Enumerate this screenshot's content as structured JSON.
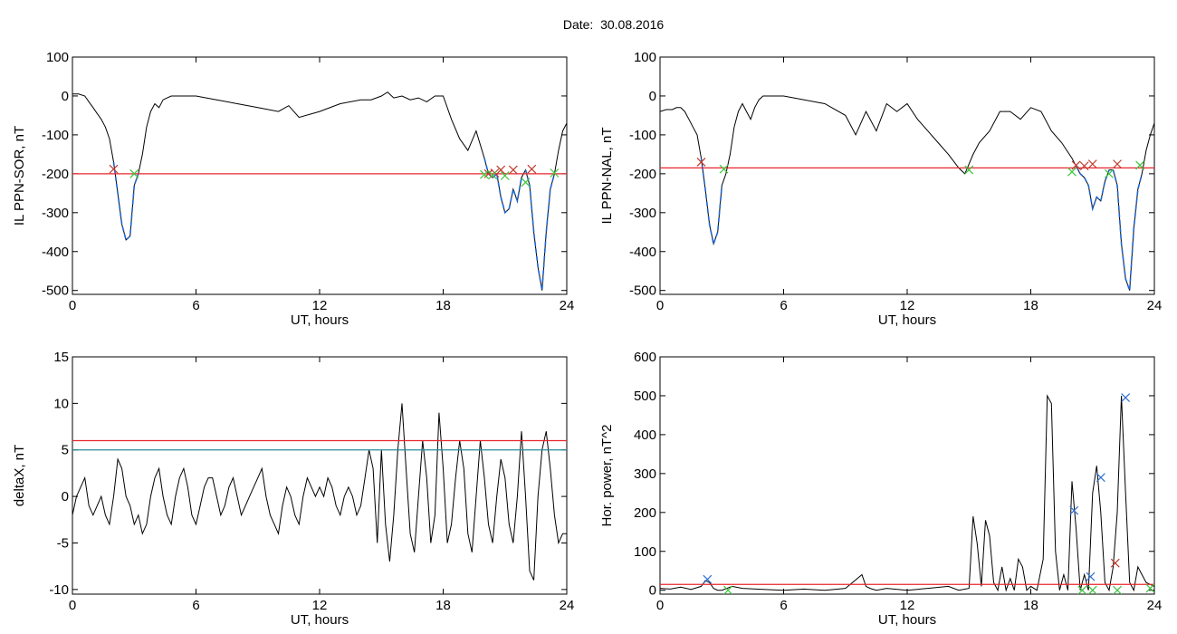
{
  "header": {
    "date_label": "Date:",
    "date_value": "30.08.2016"
  },
  "colors": {
    "threshold": "#e8262d",
    "threshold2": "#2a8a9a",
    "highlight": "#1f66d1",
    "marker_red": "#c0392b",
    "marker_green": "#3ec43e",
    "marker_blue": "#2f6fd0"
  },
  "chart_data": [
    {
      "id": "ppn-sor",
      "type": "line",
      "title": "",
      "xlabel": "UT, hours",
      "ylabel": "IL PPN-SOR, nT",
      "xlim": [
        0,
        24
      ],
      "ylim": [
        -510,
        100
      ],
      "xticks": [
        0,
        6,
        12,
        18,
        24
      ],
      "yticks": [
        100,
        0,
        -100,
        -200,
        -300,
        -400,
        -500
      ],
      "threshold": -200,
      "x": [
        0.0,
        0.3,
        0.6,
        0.8,
        1.0,
        1.2,
        1.4,
        1.6,
        1.8,
        2.0,
        2.2,
        2.4,
        2.6,
        2.8,
        3.0,
        3.2,
        3.4,
        3.6,
        3.8,
        4.0,
        4.2,
        4.4,
        4.6,
        4.8,
        5.0,
        5.5,
        6.0,
        7.0,
        8.0,
        9.0,
        10.0,
        10.5,
        11.0,
        12.0,
        13.0,
        14.0,
        14.5,
        15.0,
        15.3,
        15.6,
        16.0,
        16.4,
        16.8,
        17.2,
        17.6,
        18.0,
        18.4,
        18.8,
        19.2,
        19.6,
        20.0,
        20.2,
        20.4,
        20.6,
        20.8,
        21.0,
        21.2,
        21.4,
        21.6,
        21.8,
        22.0,
        22.2,
        22.4,
        22.6,
        22.8,
        23.0,
        23.2,
        23.4,
        23.6,
        23.8,
        24.0
      ],
      "y": [
        5,
        5,
        0,
        -15,
        -30,
        -45,
        -60,
        -80,
        -110,
        -170,
        -250,
        -330,
        -370,
        -360,
        -230,
        -200,
        -150,
        -80,
        -40,
        -20,
        -30,
        -10,
        -5,
        0,
        0,
        0,
        0,
        -10,
        -20,
        -30,
        -40,
        -25,
        -55,
        -40,
        -20,
        -10,
        -10,
        0,
        10,
        -5,
        0,
        -10,
        -5,
        -15,
        0,
        0,
        -60,
        -110,
        -140,
        -90,
        -160,
        -200,
        -210,
        -200,
        -260,
        -300,
        -290,
        -240,
        -270,
        -210,
        -190,
        -230,
        -350,
        -440,
        -500,
        -350,
        -240,
        -200,
        -140,
        -90,
        -70
      ],
      "highlight_ranges": [
        [
          2.0,
          3.2
        ],
        [
          20.0,
          21.9
        ],
        [
          22.0,
          23.4
        ]
      ],
      "markers_red": [
        [
          2.0,
          -188
        ],
        [
          20.2,
          -200
        ],
        [
          20.5,
          -198
        ],
        [
          20.8,
          -190
        ],
        [
          21.4,
          -190
        ],
        [
          22.3,
          -188
        ]
      ],
      "markers_green": [
        [
          3.0,
          -200
        ],
        [
          20.0,
          -202
        ],
        [
          20.4,
          -203
        ],
        [
          21.0,
          -205
        ],
        [
          22.0,
          -222
        ],
        [
          23.4,
          -198
        ]
      ]
    },
    {
      "id": "ppn-nal",
      "type": "line",
      "title": "",
      "xlabel": "UT, hours",
      "ylabel": "IL PPN-NAL, nT",
      "xlim": [
        0,
        24
      ],
      "ylim": [
        -510,
        100
      ],
      "xticks": [
        0,
        6,
        12,
        18,
        24
      ],
      "yticks": [
        100,
        0,
        -100,
        -200,
        -300,
        -400,
        -500
      ],
      "threshold": -185,
      "x": [
        0.0,
        0.3,
        0.6,
        0.8,
        1.0,
        1.2,
        1.4,
        1.6,
        1.8,
        2.0,
        2.2,
        2.4,
        2.6,
        2.8,
        3.0,
        3.2,
        3.4,
        3.6,
        3.8,
        4.0,
        4.2,
        4.4,
        4.6,
        4.8,
        5.0,
        5.5,
        6.0,
        7.0,
        8.0,
        9.0,
        9.5,
        10.0,
        10.5,
        11.0,
        11.5,
        12.0,
        12.5,
        13.0,
        13.5,
        14.0,
        14.5,
        14.8,
        15.0,
        15.2,
        15.5,
        16.0,
        16.5,
        17.0,
        17.5,
        18.0,
        18.5,
        19.0,
        19.5,
        20.0,
        20.2,
        20.4,
        20.6,
        20.8,
        21.0,
        21.2,
        21.4,
        21.6,
        21.8,
        22.0,
        22.2,
        22.4,
        22.6,
        22.8,
        23.0,
        23.2,
        23.4,
        23.6,
        23.8,
        24.0
      ],
      "y": [
        -40,
        -35,
        -35,
        -30,
        -30,
        -40,
        -60,
        -80,
        -100,
        -160,
        -240,
        -330,
        -380,
        -350,
        -230,
        -200,
        -150,
        -80,
        -40,
        -20,
        -40,
        -60,
        -30,
        -10,
        0,
        0,
        0,
        -10,
        -20,
        -50,
        -100,
        -40,
        -90,
        -20,
        -40,
        -20,
        -60,
        -90,
        -120,
        -150,
        -185,
        -200,
        -175,
        -150,
        -120,
        -90,
        -40,
        -40,
        -60,
        -30,
        -40,
        -90,
        -120,
        -160,
        -180,
        -200,
        -210,
        -230,
        -290,
        -260,
        -270,
        -220,
        -190,
        -190,
        -230,
        -380,
        -470,
        -500,
        -340,
        -240,
        -200,
        -140,
        -100,
        -70
      ],
      "highlight_ranges": [
        [
          2.0,
          3.1
        ],
        [
          14.9,
          15.1
        ],
        [
          20.2,
          21.8
        ],
        [
          22.0,
          23.4
        ]
      ],
      "markers_red": [
        [
          2.0,
          -170
        ],
        [
          20.2,
          -178
        ],
        [
          20.6,
          -180
        ],
        [
          21.0,
          -175
        ],
        [
          22.2,
          -175
        ]
      ],
      "markers_green": [
        [
          3.1,
          -188
        ],
        [
          15.0,
          -190
        ],
        [
          20.0,
          -195
        ],
        [
          21.8,
          -200
        ],
        [
          23.3,
          -178
        ]
      ]
    },
    {
      "id": "deltax",
      "type": "line",
      "title": "",
      "xlabel": "UT, hours",
      "ylabel": "deltaX, nT",
      "xlim": [
        0,
        24
      ],
      "ylim": [
        -10.5,
        15
      ],
      "xticks": [
        0,
        6,
        12,
        18,
        24
      ],
      "yticks": [
        15,
        10,
        5,
        0,
        -5,
        -10
      ],
      "threshold": 6.0,
      "threshold2": 5.0,
      "x": [
        0.0,
        0.2,
        0.4,
        0.6,
        0.8,
        1.0,
        1.2,
        1.4,
        1.6,
        1.8,
        2.0,
        2.2,
        2.4,
        2.6,
        2.8,
        3.0,
        3.2,
        3.4,
        3.6,
        3.8,
        4.0,
        4.2,
        4.4,
        4.6,
        4.8,
        5.0,
        5.2,
        5.4,
        5.6,
        5.8,
        6.0,
        6.2,
        6.4,
        6.6,
        6.8,
        7.0,
        7.2,
        7.4,
        7.6,
        7.8,
        8.0,
        8.2,
        8.4,
        8.6,
        8.8,
        9.0,
        9.2,
        9.4,
        9.6,
        9.8,
        10.0,
        10.2,
        10.4,
        10.6,
        10.8,
        11.0,
        11.2,
        11.4,
        11.6,
        11.8,
        12.0,
        12.2,
        12.4,
        12.6,
        12.8,
        13.0,
        13.2,
        13.4,
        13.6,
        13.8,
        14.0,
        14.2,
        14.4,
        14.6,
        14.8,
        15.0,
        15.2,
        15.4,
        15.6,
        15.8,
        16.0,
        16.2,
        16.4,
        16.6,
        16.8,
        17.0,
        17.2,
        17.4,
        17.6,
        17.8,
        18.0,
        18.2,
        18.4,
        18.6,
        18.8,
        19.0,
        19.2,
        19.4,
        19.6,
        19.8,
        20.0,
        20.2,
        20.4,
        20.6,
        20.8,
        21.0,
        21.2,
        21.4,
        21.6,
        21.8,
        22.0,
        22.2,
        22.4,
        22.6,
        22.8,
        23.0,
        23.2,
        23.4,
        23.6,
        23.8,
        24.0
      ],
      "y": [
        -2,
        0,
        1,
        2,
        -1,
        -2,
        -1,
        0,
        -2,
        -3,
        0,
        4,
        3,
        0,
        -1,
        -3,
        -2,
        -4,
        -3,
        0,
        2,
        3,
        0,
        -2,
        -3,
        0,
        2,
        3,
        1,
        -2,
        -3,
        -1,
        1,
        2,
        2,
        0,
        -2,
        -1,
        1,
        2,
        0,
        -2,
        -1,
        0,
        1,
        2,
        3,
        0,
        -2,
        -3,
        -4,
        -1,
        1,
        0,
        -2,
        -3,
        0,
        2,
        1,
        0,
        1,
        0,
        2,
        1,
        -1,
        -2,
        0,
        1,
        0,
        -2,
        -1,
        2,
        5,
        3,
        -5,
        5,
        -3,
        -7,
        -2,
        5,
        10,
        3,
        -4,
        -6,
        0,
        6,
        2,
        -5,
        -2,
        9,
        3,
        -5,
        -3,
        2,
        6,
        3,
        -4,
        -6,
        0,
        6,
        2,
        -3,
        -5,
        0,
        4,
        2,
        -3,
        -5,
        0,
        7,
        0,
        -8,
        -9,
        0,
        5,
        7,
        3,
        -2,
        -5,
        -4,
        -4
      ],
      "markers_red": [],
      "markers_green": []
    },
    {
      "id": "hor-power",
      "type": "line",
      "title": "",
      "xlabel": "UT, hours",
      "ylabel": "Hor. power, nT^2",
      "xlim": [
        0,
        24
      ],
      "ylim": [
        -10,
        600
      ],
      "xticks": [
        0,
        6,
        12,
        18,
        24
      ],
      "yticks": [
        600,
        500,
        400,
        300,
        200,
        100,
        0
      ],
      "threshold": 15,
      "x": [
        0.0,
        0.5,
        1.0,
        1.5,
        2.0,
        2.2,
        2.4,
        2.6,
        2.8,
        3.0,
        3.5,
        4.0,
        5.0,
        6.0,
        7.0,
        8.0,
        9.0,
        9.8,
        10.0,
        10.2,
        10.5,
        11.0,
        12.0,
        13.0,
        14.0,
        14.5,
        15.0,
        15.2,
        15.4,
        15.6,
        15.8,
        16.0,
        16.2,
        16.4,
        16.6,
        16.8,
        17.0,
        17.2,
        17.4,
        17.6,
        17.8,
        18.0,
        18.3,
        18.6,
        18.8,
        19.0,
        19.2,
        19.4,
        19.6,
        19.8,
        20.0,
        20.2,
        20.4,
        20.6,
        20.8,
        21.0,
        21.2,
        21.4,
        21.6,
        21.8,
        22.0,
        22.2,
        22.4,
        22.6,
        22.8,
        23.0,
        23.2,
        23.4,
        23.6,
        23.8,
        24.0
      ],
      "y": [
        5,
        3,
        8,
        2,
        10,
        25,
        20,
        5,
        0,
        0,
        10,
        5,
        2,
        0,
        3,
        0,
        5,
        40,
        10,
        5,
        0,
        5,
        0,
        5,
        10,
        0,
        5,
        190,
        120,
        10,
        180,
        140,
        20,
        0,
        60,
        0,
        30,
        0,
        80,
        60,
        0,
        10,
        0,
        80,
        500,
        480,
        100,
        0,
        40,
        0,
        280,
        160,
        0,
        40,
        0,
        250,
        320,
        200,
        20,
        0,
        60,
        200,
        500,
        250,
        20,
        0,
        60,
        40,
        20,
        15,
        10
      ],
      "markers_blue": [
        [
          2.3,
          28
        ],
        [
          20.1,
          205
        ],
        [
          20.9,
          35
        ],
        [
          21.4,
          290
        ],
        [
          22.6,
          495
        ]
      ],
      "markers_red": [
        [
          22.1,
          70
        ]
      ],
      "markers_green": [
        [
          3.3,
          0
        ],
        [
          20.5,
          0
        ],
        [
          21.0,
          0
        ],
        [
          22.2,
          0
        ],
        [
          23.8,
          5
        ]
      ]
    }
  ]
}
